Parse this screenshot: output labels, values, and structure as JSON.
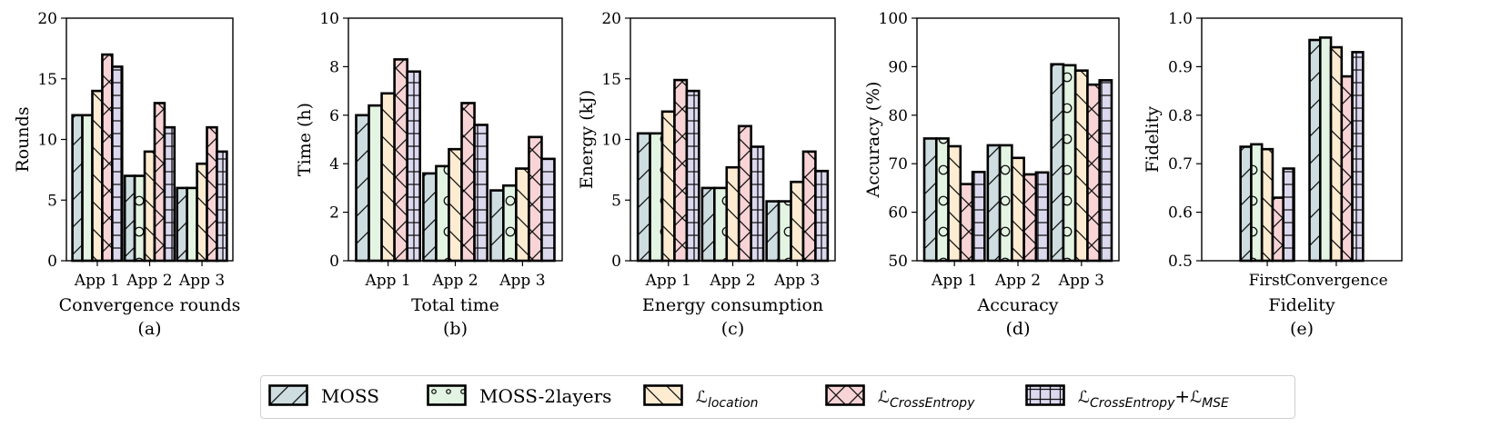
{
  "colors": {
    "MOSS": "#cddde0",
    "MOSS-2layers": "#e3f4e3",
    "location": "#fdecd2",
    "CrossEntropy": "#f8d4d6",
    "CrossEntropyMSE": "#dcd9ef"
  },
  "legend": {
    "items": [
      {
        "key": "MOSS",
        "label": "MOSS",
        "hatch": "diag-fwd"
      },
      {
        "key": "MOSS-2layers",
        "label": "MOSS-2layers",
        "hatch": "circles"
      },
      {
        "key": "location",
        "label_main": "ℒ",
        "label_sub": "location",
        "hatch": "diag-back"
      },
      {
        "key": "CrossEntropy",
        "label_main": "ℒ",
        "label_sub": "CrossEntropy",
        "hatch": "cross"
      },
      {
        "key": "CrossEntropyMSE",
        "label_main": "ℒ",
        "label_sub": "CrossEntropy",
        "label_plus": "+",
        "label_main2": "ℒ",
        "label_sub2": "MSE",
        "hatch": "grid"
      }
    ]
  },
  "chart_data": [
    {
      "type": "bar",
      "panel": "(a)",
      "xlabel": "Convergence rounds",
      "ylabel": "Rounds",
      "categories": [
        "App 1",
        "App 2",
        "App 3"
      ],
      "ylim": [
        0,
        20
      ],
      "yticks": [
        "0",
        "5",
        "10",
        "15",
        "20"
      ],
      "series": [
        {
          "key": "MOSS",
          "values": [
            12,
            7,
            6
          ]
        },
        {
          "key": "MOSS-2layers",
          "values": [
            12,
            7,
            6
          ]
        },
        {
          "key": "location",
          "values": [
            14,
            9,
            8
          ]
        },
        {
          "key": "CrossEntropy",
          "values": [
            17,
            13,
            11
          ]
        },
        {
          "key": "CrossEntropyMSE",
          "values": [
            16,
            11,
            9
          ]
        }
      ]
    },
    {
      "type": "bar",
      "panel": "(b)",
      "xlabel": "Total time",
      "ylabel": "Time (h)",
      "categories": [
        "App 1",
        "App 2",
        "App 3"
      ],
      "ylim": [
        0,
        10
      ],
      "yticks": [
        "0",
        "2",
        "4",
        "6",
        "8",
        "10"
      ],
      "series": [
        {
          "key": "MOSS",
          "values": [
            6.0,
            3.6,
            2.9
          ]
        },
        {
          "key": "MOSS-2layers",
          "values": [
            6.4,
            3.9,
            3.1
          ]
        },
        {
          "key": "location",
          "values": [
            6.9,
            4.6,
            3.8
          ]
        },
        {
          "key": "CrossEntropy",
          "values": [
            8.3,
            6.5,
            5.1
          ]
        },
        {
          "key": "CrossEntropyMSE",
          "values": [
            7.8,
            5.6,
            4.2
          ]
        }
      ]
    },
    {
      "type": "bar",
      "panel": "(c)",
      "xlabel": "Energy consumption",
      "ylabel": "Energy (kJ)",
      "categories": [
        "App 1",
        "App 2",
        "App 3"
      ],
      "ylim": [
        0,
        20
      ],
      "yticks": [
        "0",
        "5",
        "10",
        "15",
        "20"
      ],
      "series": [
        {
          "key": "MOSS",
          "values": [
            10.5,
            6.0,
            4.9
          ]
        },
        {
          "key": "MOSS-2layers",
          "values": [
            10.5,
            6.0,
            4.9
          ]
        },
        {
          "key": "location",
          "values": [
            12.3,
            7.7,
            6.5
          ]
        },
        {
          "key": "CrossEntropy",
          "values": [
            14.9,
            11.1,
            9.0
          ]
        },
        {
          "key": "CrossEntropyMSE",
          "values": [
            14.0,
            9.4,
            7.4
          ]
        }
      ]
    },
    {
      "type": "bar",
      "panel": "(d)",
      "xlabel": "Accuracy",
      "ylabel": "Accuracy (%)",
      "categories": [
        "App 1",
        "App 2",
        "App 3"
      ],
      "ylim": [
        50,
        100
      ],
      "yticks": [
        "50",
        "60",
        "70",
        "80",
        "90",
        "100"
      ],
      "series": [
        {
          "key": "MOSS",
          "values": [
            75.2,
            73.8,
            90.5
          ]
        },
        {
          "key": "MOSS-2layers",
          "values": [
            75.2,
            73.8,
            90.3
          ]
        },
        {
          "key": "location",
          "values": [
            73.6,
            71.2,
            89.2
          ]
        },
        {
          "key": "CrossEntropy",
          "values": [
            65.8,
            67.8,
            86.3
          ]
        },
        {
          "key": "CrossEntropyMSE",
          "values": [
            68.3,
            68.2,
            87.2
          ]
        }
      ]
    },
    {
      "type": "bar",
      "panel": "(e)",
      "xlabel": "Fidelity",
      "ylabel": "Fidelity",
      "categories": [
        "First",
        "Convergence"
      ],
      "ylim": [
        0.5,
        1.0
      ],
      "yticks": [
        "0.5",
        "0.6",
        "0.7",
        "0.8",
        "0.9",
        "1.0"
      ],
      "series": [
        {
          "key": "MOSS",
          "values": [
            0.735,
            0.955
          ]
        },
        {
          "key": "MOSS-2layers",
          "values": [
            0.74,
            0.96
          ]
        },
        {
          "key": "location",
          "values": [
            0.73,
            0.94
          ]
        },
        {
          "key": "CrossEntropy",
          "values": [
            0.63,
            0.88
          ]
        },
        {
          "key": "CrossEntropyMSE",
          "values": [
            0.69,
            0.93
          ]
        }
      ]
    }
  ]
}
